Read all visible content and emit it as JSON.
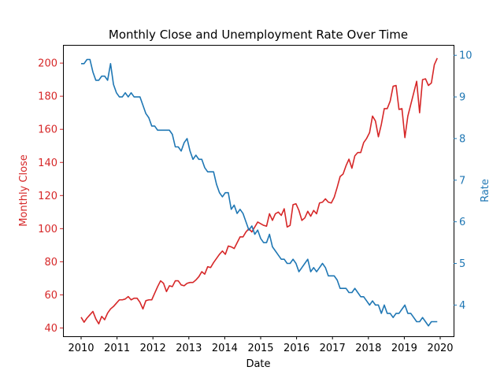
{
  "chart_data": {
    "type": "line",
    "title": "Monthly Close and Unemployment Rate Over Time",
    "xlabel": "Date",
    "x_ticks": [
      "2010",
      "2011",
      "2012",
      "2013",
      "2014",
      "2015",
      "2016",
      "2017",
      "2018",
      "2019",
      "2020"
    ],
    "y_left": {
      "label": "Monthly Close",
      "color": "#d62728",
      "ylim": [
        35,
        211
      ],
      "ticks": [
        40,
        60,
        80,
        100,
        120,
        140,
        160,
        180,
        200
      ]
    },
    "y_right": {
      "label": "Rate",
      "color": "#1f77b4",
      "ylim": [
        3.25,
        10.25
      ],
      "ticks": [
        4,
        5,
        6,
        7,
        8,
        9,
        10
      ]
    },
    "x_start": "2010-01",
    "series": [
      {
        "axis": "left",
        "color": "#d62728",
        "values": [
          46.5,
          43.5,
          46,
          48,
          50,
          45.5,
          42.5,
          47,
          45,
          49,
          51.5,
          53,
          55,
          57,
          57,
          57.5,
          59,
          57,
          58,
          58,
          55.5,
          51.5,
          56.5,
          57,
          57,
          61,
          65,
          68.5,
          67,
          62,
          65.5,
          65,
          68.5,
          68.5,
          66,
          65.5,
          67,
          67.5,
          67.5,
          69,
          71,
          74,
          72.5,
          77,
          76.5,
          79.5,
          82,
          84.5,
          86.5,
          84.5,
          89.5,
          89,
          88,
          91.5,
          95,
          95,
          98,
          100,
          98,
          101,
          104,
          103,
          102,
          101.5,
          109,
          105,
          109,
          110,
          108,
          112,
          101,
          102,
          114.5,
          115,
          111,
          105,
          106.5,
          110.5,
          107.5,
          111,
          109,
          115.5,
          116,
          118,
          116,
          115.5,
          119,
          125,
          131.5,
          133,
          138,
          142,
          136.5,
          144,
          146,
          146,
          152,
          154.5,
          158,
          168,
          165,
          155.5,
          163,
          172.5,
          172.5,
          177,
          186,
          186.5,
          172,
          172.5,
          155,
          168,
          175,
          182,
          189,
          170,
          190,
          190.5,
          186.5,
          188,
          199,
          203
        ]
      },
      {
        "axis": "right",
        "color": "#1f77b4",
        "values": [
          9.8,
          9.8,
          9.9,
          9.9,
          9.6,
          9.4,
          9.4,
          9.5,
          9.5,
          9.4,
          9.8,
          9.3,
          9.1,
          9.0,
          9.0,
          9.1,
          9.0,
          9.1,
          9.0,
          9.0,
          9.0,
          8.8,
          8.6,
          8.5,
          8.3,
          8.3,
          8.2,
          8.2,
          8.2,
          8.2,
          8.2,
          8.1,
          7.8,
          7.8,
          7.7,
          7.9,
          8.0,
          7.7,
          7.5,
          7.6,
          7.5,
          7.5,
          7.3,
          7.2,
          7.2,
          7.2,
          6.9,
          6.7,
          6.6,
          6.7,
          6.7,
          6.3,
          6.4,
          6.2,
          6.3,
          6.2,
          6.0,
          5.8,
          5.9,
          5.7,
          5.8,
          5.6,
          5.5,
          5.5,
          5.7,
          5.4,
          5.3,
          5.2,
          5.1,
          5.1,
          5.0,
          5.0,
          5.1,
          5.0,
          4.8,
          4.9,
          5.0,
          5.1,
          4.8,
          4.9,
          4.8,
          4.9,
          5.0,
          4.9,
          4.7,
          4.7,
          4.7,
          4.6,
          4.4,
          4.4,
          4.4,
          4.3,
          4.3,
          4.4,
          4.3,
          4.2,
          4.2,
          4.1,
          4.0,
          4.1,
          4.0,
          4.0,
          3.8,
          4.0,
          3.8,
          3.8,
          3.7,
          3.8,
          3.8,
          3.9,
          4.0,
          3.8,
          3.8,
          3.7,
          3.6,
          3.6,
          3.7,
          3.6,
          3.5,
          3.6,
          3.6,
          3.6
        ]
      }
    ]
  }
}
